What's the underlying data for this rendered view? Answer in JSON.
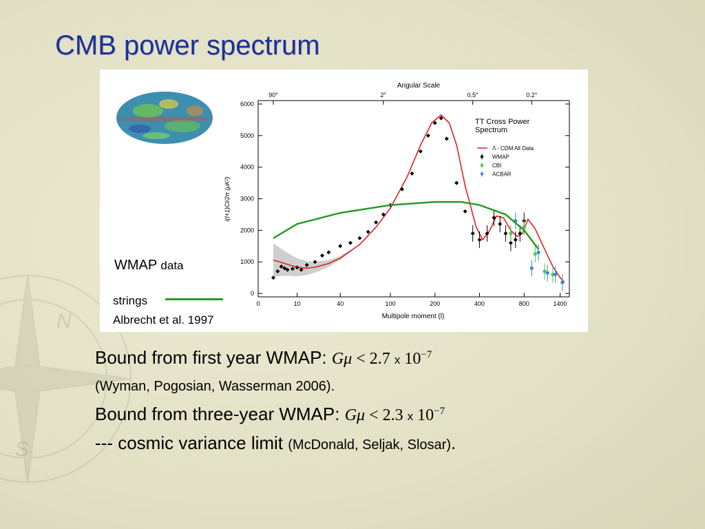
{
  "slide": {
    "title": "CMB power spectrum",
    "wmap_label_main": "WMAP",
    "wmap_label_small": "data",
    "strings_label": "strings",
    "albrecht_label": "Albrecht et al. 1997"
  },
  "text": {
    "line1_prefix": "Bound from first year WMAP: ",
    "line1_G": "G",
    "line1_mu": "μ",
    "line1_rel": " < 2.7 ",
    "line1_x": "x",
    "line1_base": " 10",
    "line1_exp": "−7",
    "line2": "(Wyman, Pogosian, Wasserman 2006)",
    "line2_end": ".",
    "line3_prefix": "Bound from three-year WMAP: ",
    "line3_G": "G",
    "line3_mu": "μ",
    "line3_rel": " < 2.3 ",
    "line3_x": "x",
    "line3_base": " 10",
    "line3_exp": "−7",
    "line4_prefix": "--- cosmic variance limit ",
    "line4_paren": "(McDonald, Seljak, Slosar)",
    "line4_end": "."
  },
  "colors": {
    "title": "#1b2f9e",
    "model": "#dd2222",
    "strings": "#2a9a2a",
    "wmap": "#000000",
    "cbi": "#44cc44",
    "acbar": "#3388dd",
    "band": "#bbbbbb"
  },
  "chart_data": {
    "type": "scatter",
    "title": "TT Cross Power Spectrum",
    "top_axis_title": "Angular Scale",
    "top_ticks": [
      "90°",
      "2°",
      "0.5°",
      "0.2°"
    ],
    "xlabel": "Multipole moment (l)",
    "ylabel": "l(l+1)Cl/2π (μK²)",
    "x_ticks": [
      "0",
      "10",
      "40",
      "100",
      "200",
      "400",
      "800",
      "1400"
    ],
    "y_ticks": [
      "0",
      "1000",
      "2000",
      "3000",
      "4000",
      "5000",
      "6000"
    ],
    "ylim": [
      0,
      6000
    ],
    "legend": [
      "Λ - CDM All Data",
      "WMAP",
      "CBI",
      "ACBAR"
    ],
    "legend_position": "top-right",
    "series": [
      {
        "name": "Λ - CDM All Data",
        "kind": "line",
        "x": [
          2,
          3,
          5,
          8,
          10,
          15,
          20,
          30,
          40,
          60,
          80,
          100,
          130,
          160,
          190,
          220,
          250,
          280,
          320,
          380,
          420,
          470,
          520,
          580,
          650,
          720,
          780,
          850,
          950,
          1100,
          1250,
          1400,
          1500
        ],
        "y": [
          1050,
          1020,
          950,
          870,
          830,
          800,
          830,
          950,
          1120,
          1550,
          2100,
          2700,
          3700,
          4700,
          5400,
          5650,
          5400,
          4700,
          3400,
          2100,
          1700,
          2000,
          2450,
          2400,
          2000,
          1800,
          1900,
          2350,
          2050,
          1400,
          850,
          500,
          350
        ]
      },
      {
        "name": "WMAP",
        "kind": "points",
        "x": [
          2,
          3,
          4,
          5,
          6,
          8,
          10,
          12,
          15,
          20,
          25,
          30,
          40,
          50,
          60,
          70,
          80,
          90,
          100,
          120,
          140,
          160,
          180,
          200,
          220,
          240,
          280,
          320,
          360,
          400,
          450,
          500,
          550,
          600,
          650,
          700,
          750,
          800
        ],
        "y": [
          500,
          700,
          850,
          800,
          750,
          780,
          820,
          750,
          900,
          1000,
          1200,
          1300,
          1500,
          1600,
          1750,
          1950,
          2250,
          2500,
          2800,
          3300,
          3800,
          4500,
          5000,
          5400,
          5550,
          4900,
          3500,
          2600,
          1900,
          1700,
          1900,
          2400,
          2200,
          1900,
          1600,
          1700,
          1900,
          2300
        ]
      },
      {
        "name": "CBI",
        "kind": "points",
        "x": [
          650,
          800,
          950,
          1100,
          1250
        ],
        "y": [
          1900,
          2100,
          1250,
          700,
          600
        ]
      },
      {
        "name": "ACBAR",
        "kind": "points",
        "x": [
          700,
          900,
          1000,
          1150,
          1300,
          1450
        ],
        "y": [
          2300,
          800,
          1300,
          650,
          600,
          350
        ]
      },
      {
        "name": "strings",
        "kind": "line",
        "x": [
          2,
          10,
          40,
          100,
          200,
          300,
          400,
          600,
          800,
          1000
        ],
        "y": [
          1750,
          2200,
          2550,
          2800,
          2900,
          2900,
          2800,
          2500,
          2000,
          1400
        ]
      }
    ]
  }
}
